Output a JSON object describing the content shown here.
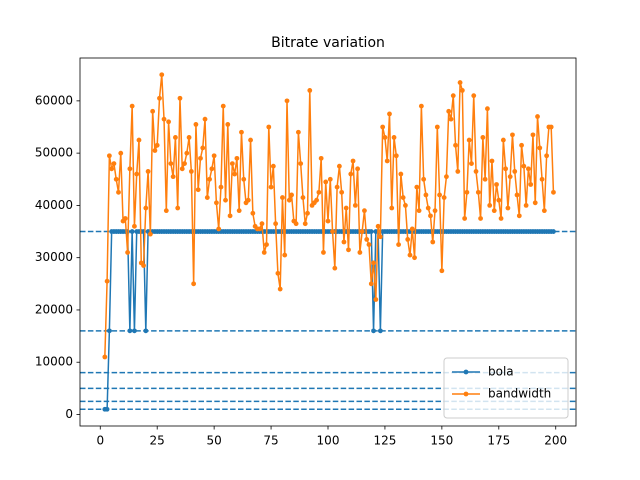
{
  "chart_data": {
    "type": "line",
    "title": "Bitrate variation",
    "x": [
      2,
      3,
      4,
      5,
      6,
      7,
      8,
      9,
      10,
      11,
      12,
      13,
      14,
      15,
      16,
      17,
      18,
      19,
      20,
      21,
      22,
      23,
      24,
      25,
      26,
      27,
      28,
      29,
      30,
      31,
      32,
      33,
      34,
      35,
      36,
      37,
      38,
      39,
      40,
      41,
      42,
      43,
      44,
      45,
      46,
      47,
      48,
      49,
      50,
      51,
      52,
      53,
      54,
      55,
      56,
      57,
      58,
      59,
      60,
      61,
      62,
      63,
      64,
      65,
      66,
      67,
      68,
      69,
      70,
      71,
      72,
      73,
      74,
      75,
      76,
      77,
      78,
      79,
      80,
      81,
      82,
      83,
      84,
      85,
      86,
      87,
      88,
      89,
      90,
      91,
      92,
      93,
      94,
      95,
      96,
      97,
      98,
      99,
      100,
      101,
      102,
      103,
      104,
      105,
      106,
      107,
      108,
      109,
      110,
      111,
      112,
      113,
      114,
      115,
      116,
      117,
      118,
      119,
      120,
      121,
      122,
      123,
      124,
      125,
      126,
      127,
      128,
      129,
      130,
      131,
      132,
      133,
      134,
      135,
      136,
      137,
      138,
      139,
      140,
      141,
      142,
      143,
      144,
      145,
      146,
      147,
      148,
      149,
      150,
      151,
      152,
      153,
      154,
      155,
      156,
      157,
      158,
      159,
      160,
      161,
      162,
      163,
      164,
      165,
      166,
      167,
      168,
      169,
      170,
      171,
      172,
      173,
      174,
      175,
      176,
      177,
      178,
      179,
      180,
      181,
      182,
      183,
      184,
      185,
      186,
      187,
      188,
      189,
      190,
      191,
      192,
      193,
      194,
      195,
      196,
      197,
      198,
      199
    ],
    "series": [
      {
        "name": "bola",
        "color": "#1f77b4",
        "values": [
          1000,
          1000,
          16000,
          35000,
          35000,
          35000,
          35000,
          35000,
          35000,
          35000,
          35000,
          16000,
          35000,
          16000,
          35000,
          35000,
          35000,
          35000,
          16000,
          35000,
          35000,
          35000,
          35000,
          35000,
          35000,
          35000,
          35000,
          35000,
          35000,
          35000,
          35000,
          35000,
          35000,
          35000,
          35000,
          35000,
          35000,
          35000,
          35000,
          35000,
          35000,
          35000,
          35000,
          35000,
          35000,
          35000,
          35000,
          35000,
          35000,
          35000,
          35000,
          35000,
          35000,
          35000,
          35000,
          35000,
          35000,
          35000,
          35000,
          35000,
          35000,
          35000,
          35000,
          35000,
          35000,
          35000,
          35000,
          35000,
          35000,
          35000,
          35000,
          35000,
          35000,
          35000,
          35000,
          35000,
          35000,
          35000,
          35000,
          35000,
          35000,
          35000,
          35000,
          35000,
          35000,
          35000,
          35000,
          35000,
          35000,
          35000,
          35000,
          35000,
          35000,
          35000,
          35000,
          35000,
          35000,
          35000,
          35000,
          35000,
          35000,
          35000,
          35000,
          35000,
          35000,
          35000,
          35000,
          35000,
          35000,
          35000,
          35000,
          35000,
          35000,
          35000,
          35000,
          35000,
          35000,
          35000,
          16000,
          35000,
          35000,
          16000,
          35000,
          35000,
          35000,
          35000,
          35000,
          35000,
          35000,
          35000,
          35000,
          35000,
          35000,
          35000,
          35000,
          35000,
          35000,
          35000,
          35000,
          35000,
          35000,
          35000,
          35000,
          35000,
          35000,
          35000,
          35000,
          35000,
          35000,
          35000,
          35000,
          35000,
          35000,
          35000,
          35000,
          35000,
          35000,
          35000,
          35000,
          35000,
          35000,
          35000,
          35000,
          35000,
          35000,
          35000,
          35000,
          35000,
          35000,
          35000,
          35000,
          35000,
          35000,
          35000,
          35000,
          35000,
          35000,
          35000,
          35000,
          35000,
          35000,
          35000,
          35000,
          35000,
          35000,
          35000,
          35000,
          35000,
          35000,
          35000,
          35000,
          35000,
          35000,
          35000,
          35000,
          35000,
          35000,
          35000
        ]
      },
      {
        "name": "bandwidth",
        "color": "#ff7f0e",
        "values": [
          11000,
          25500,
          49500,
          47000,
          48000,
          45000,
          42500,
          50000,
          37000,
          37500,
          31000,
          47000,
          59000,
          36000,
          46000,
          52500,
          29000,
          28500,
          39500,
          46500,
          34500,
          58000,
          50500,
          51500,
          60500,
          65000,
          56500,
          39000,
          56000,
          48000,
          45500,
          53000,
          39500,
          60500,
          47000,
          48000,
          50000,
          53000,
          46500,
          25000,
          55500,
          43000,
          49000,
          51000,
          56500,
          41500,
          45000,
          47000,
          49500,
          40500,
          35500,
          43500,
          59000,
          41000,
          55500,
          38000,
          48000,
          46000,
          49000,
          39000,
          54000,
          45000,
          40500,
          41000,
          52500,
          38500,
          36000,
          35500,
          35500,
          36500,
          31000,
          32500,
          55000,
          43500,
          47500,
          36500,
          27000,
          24000,
          41500,
          30500,
          60000,
          41000,
          42000,
          37000,
          36500,
          54000,
          48000,
          41500,
          36500,
          38500,
          62000,
          40000,
          40500,
          41000,
          42500,
          49000,
          31000,
          44500,
          37000,
          45000,
          35000,
          28000,
          43500,
          47500,
          42500,
          33000,
          39500,
          31500,
          46000,
          48500,
          40000,
          47000,
          31000,
          35000,
          39000,
          33500,
          32500,
          25000,
          29000,
          22000,
          36000,
          34000,
          55000,
          53000,
          48500,
          57500,
          39500,
          53000,
          49500,
          32500,
          46000,
          41500,
          40000,
          33500,
          30500,
          35500,
          30000,
          43500,
          39000,
          59000,
          45000,
          42000,
          39500,
          38000,
          33000,
          39000,
          55000,
          42000,
          27500,
          41500,
          45500,
          58000,
          56500,
          61000,
          51500,
          46500,
          63500,
          62000,
          37500,
          42500,
          52500,
          48000,
          61000,
          46500,
          42500,
          37500,
          53000,
          45000,
          58500,
          40000,
          48500,
          39000,
          44000,
          41000,
          37500,
          52500,
          47000,
          39500,
          45500,
          53500,
          46500,
          42000,
          38000,
          51500,
          47500,
          40000,
          47000,
          44000,
          53500,
          40500,
          57000,
          51000,
          45000,
          39000,
          49500,
          55000,
          55000,
          42500
        ]
      }
    ],
    "reference_lines": [
      1000,
      2500,
      5000,
      8000,
      16000,
      35000
    ],
    "xlim": [
      -8.9,
      208.9
    ],
    "ylim": [
      -2200,
      68200
    ],
    "xticks": [
      0,
      25,
      50,
      75,
      100,
      125,
      150,
      175,
      200
    ],
    "yticks": [
      0,
      10000,
      20000,
      30000,
      40000,
      50000,
      60000
    ],
    "legend": "lower right"
  }
}
